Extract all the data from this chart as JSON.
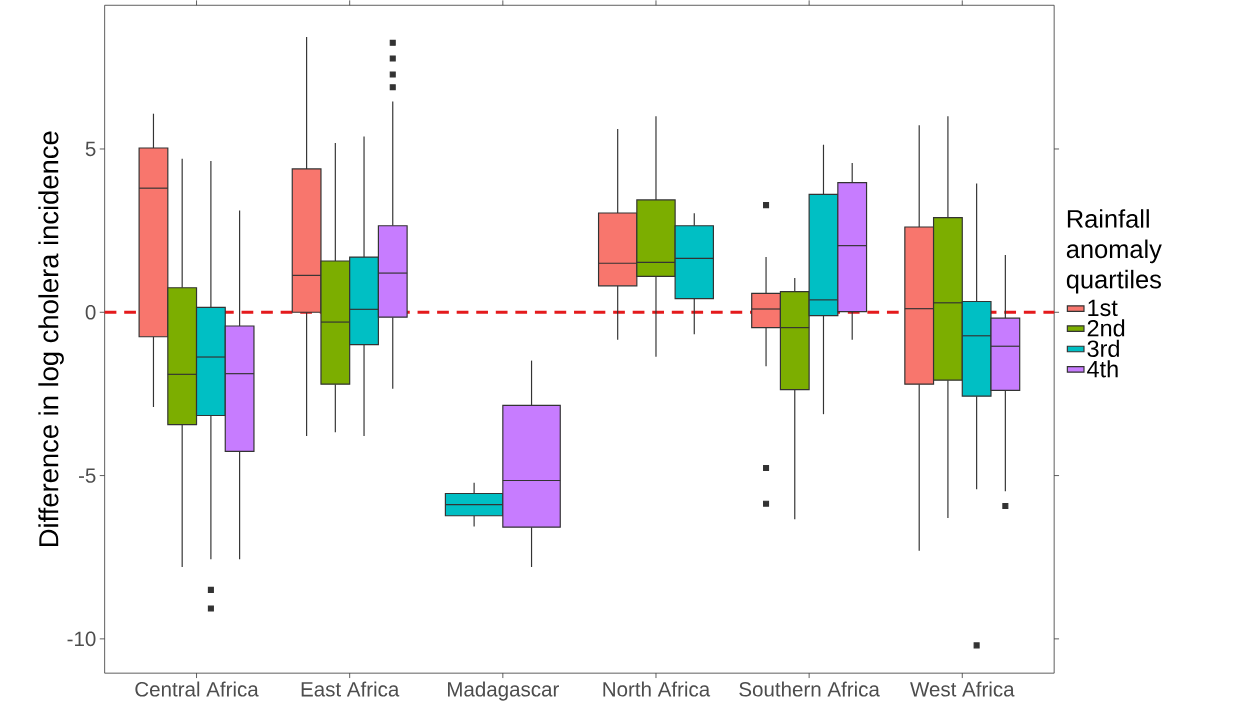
{
  "chart_data": {
    "type": "box",
    "ylabel": "Difference in log cholera incidence",
    "legend_title": "Rainfall anomaly quartiles",
    "categories": [
      "Central Africa",
      "East Africa",
      "Madagascar",
      "North Africa",
      "Southern Africa",
      "West Africa"
    ],
    "ylim": [
      -11.05,
      9.4
    ],
    "yticks": [
      -10,
      -5,
      0,
      5
    ],
    "grid": false,
    "legend": "right",
    "ref_lines": [
      {
        "axis": "y",
        "value": 0,
        "color": "#e41a1c",
        "line_style": "dashed"
      }
    ],
    "series": [
      {
        "name": "1st",
        "color": "#f8766d",
        "boxes": [
          {
            "low": -2.9,
            "q1": -0.75,
            "median": 3.8,
            "q3": 5.03,
            "high": 6.08
          },
          {
            "low": -3.79,
            "q1": 0,
            "median": 1.13,
            "q3": 4.39,
            "high": 8.43
          },
          null,
          {
            "low": -0.84,
            "q1": 0.81,
            "median": 1.5,
            "q3": 3.04,
            "high": 5.61
          },
          {
            "low": -1.65,
            "q1": -0.47,
            "median": 0.1,
            "q3": 0.58,
            "high": 1.69,
            "outliers": [
              3.28,
              -4.77,
              -5.86
            ]
          },
          {
            "low": -7.3,
            "q1": -2.2,
            "median": 0.11,
            "q3": 2.61,
            "high": 5.73
          }
        ]
      },
      {
        "name": "2nd",
        "color": "#7cae00",
        "boxes": [
          {
            "low": -7.8,
            "q1": -3.44,
            "median": -1.9,
            "q3": 0.75,
            "high": 4.7
          },
          {
            "low": -3.67,
            "q1": -2.2,
            "median": -0.3,
            "q3": 1.57,
            "high": 5.18
          },
          null,
          {
            "low": -1.36,
            "q1": 1.1,
            "median": 1.53,
            "q3": 3.44,
            "high": 6.0
          },
          {
            "low": -6.34,
            "q1": -2.37,
            "median": -0.47,
            "q3": 0.63,
            "high": 1.05
          },
          {
            "low": -6.3,
            "q1": -2.08,
            "median": 0.29,
            "q3": 2.9,
            "high": 6.0
          }
        ]
      },
      {
        "name": "3rd",
        "color": "#00bfc4",
        "boxes": [
          {
            "low": -7.56,
            "q1": -3.16,
            "median": -1.37,
            "q3": 0.15,
            "high": 4.63,
            "outliers": [
              -8.5,
              -9.07
            ]
          },
          {
            "low": -3.79,
            "q1": -0.99,
            "median": 0.09,
            "q3": 1.69,
            "high": 5.38
          },
          {
            "low": -6.56,
            "q1": -6.23,
            "median": -5.89,
            "q3": -5.55,
            "high": -5.22
          },
          {
            "low": -0.67,
            "q1": 0.42,
            "median": 1.65,
            "q3": 2.65,
            "high": 3.03
          },
          {
            "low": -3.12,
            "q1": -0.1,
            "median": 0.38,
            "q3": 3.61,
            "high": 5.13
          },
          {
            "low": -5.42,
            "q1": -2.57,
            "median": -0.72,
            "q3": 0.33,
            "high": 3.94,
            "outliers": [
              -10.2
            ]
          }
        ]
      },
      {
        "name": "4th",
        "color": "#c77cff",
        "boxes": [
          {
            "low": -7.56,
            "q1": -4.26,
            "median": -1.88,
            "q3": -0.42,
            "high": 3.12
          },
          {
            "low": -2.34,
            "q1": -0.15,
            "median": 1.2,
            "q3": 2.65,
            "high": 6.45,
            "outliers": [
              8.25,
              7.77,
              7.28,
              6.89
            ]
          },
          {
            "low": -7.8,
            "q1": -6.58,
            "median": -5.15,
            "q3": -2.85,
            "high": -1.48
          },
          null,
          {
            "low": -0.84,
            "q1": 0.02,
            "median": 2.04,
            "q3": 3.97,
            "high": 4.57
          },
          {
            "low": -5.48,
            "q1": -2.39,
            "median": -1.04,
            "q3": -0.18,
            "high": 1.75,
            "outliers": [
              -5.93
            ]
          }
        ]
      }
    ]
  }
}
